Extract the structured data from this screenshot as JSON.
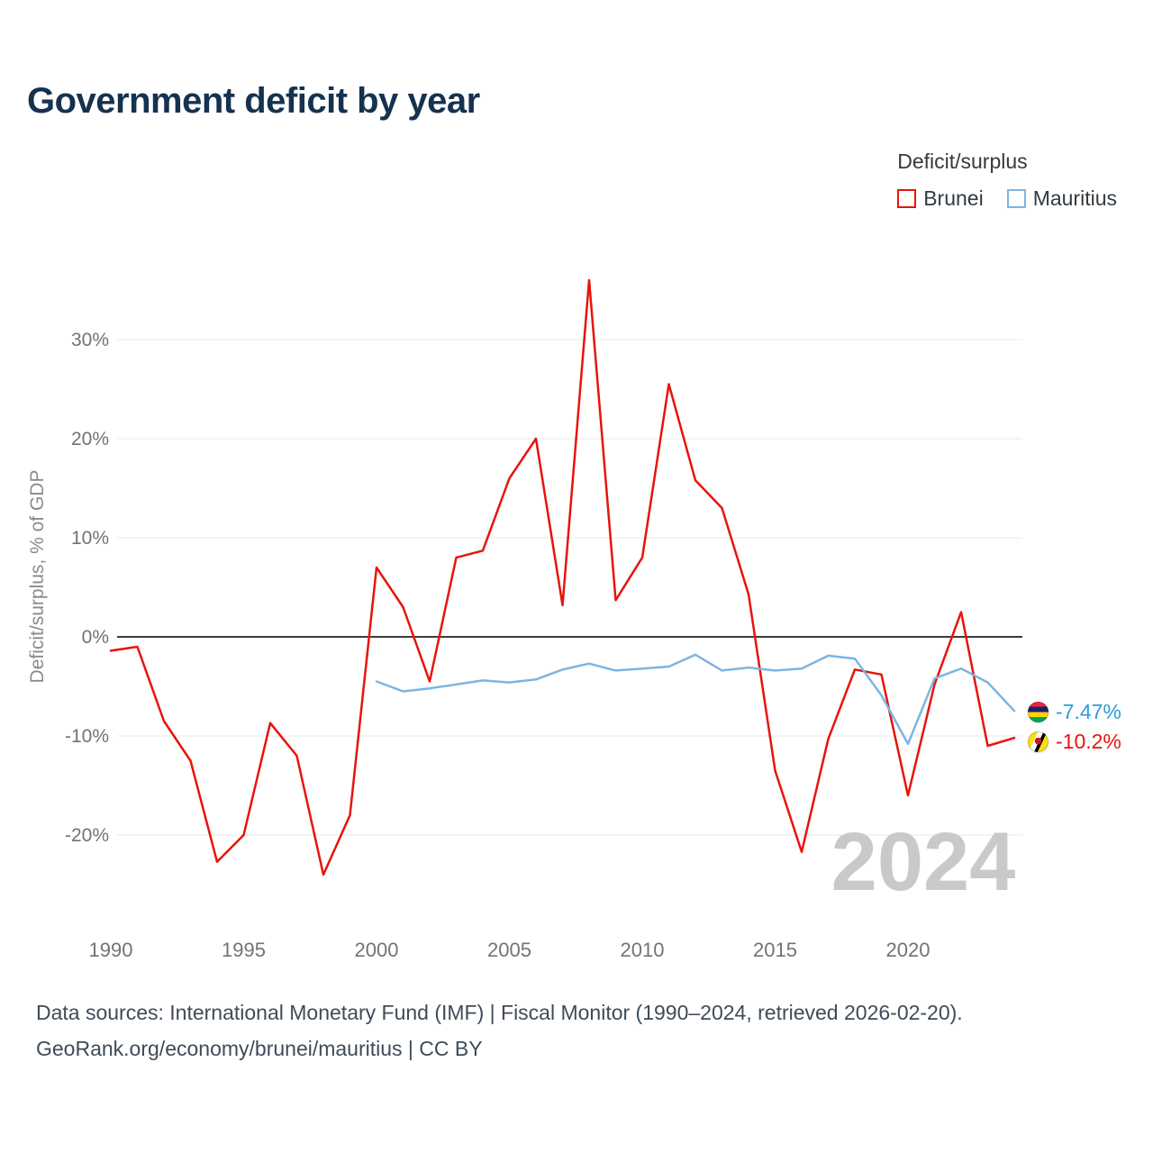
{
  "title": "Government deficit by year",
  "legend": {
    "title": "Deficit/surplus",
    "items": [
      {
        "label": "Brunei",
        "color": "#e8130b"
      },
      {
        "label": "Mauritius",
        "color": "#7cb5e3"
      }
    ]
  },
  "chart_data": {
    "type": "line",
    "title": "Government deficit by year",
    "xlabel": "",
    "ylabel": "Deficit/surplus, % of GDP",
    "xlim": [
      1990,
      2024
    ],
    "ylim": [
      -27,
      37
    ],
    "grid": true,
    "x_ticks": [
      1990,
      1995,
      2000,
      2005,
      2010,
      2015,
      2020
    ],
    "y_ticks": [
      30,
      20,
      10,
      0,
      -10,
      -20
    ],
    "y_tick_suffix": "%",
    "watermark": "2024",
    "series": [
      {
        "name": "Brunei",
        "color": "#e8130b",
        "x": [
          1990,
          1991,
          1992,
          1993,
          1994,
          1995,
          1996,
          1997,
          1998,
          1999,
          2000,
          2001,
          2002,
          2003,
          2004,
          2005,
          2006,
          2007,
          2008,
          2009,
          2010,
          2011,
          2012,
          2013,
          2014,
          2015,
          2016,
          2017,
          2018,
          2019,
          2020,
          2021,
          2022,
          2023,
          2024
        ],
        "values": [
          -1.4,
          -1.0,
          -8.5,
          -12.5,
          -22.7,
          -20.0,
          -8.7,
          -12.0,
          -24.0,
          -18.0,
          7.0,
          3.0,
          -4.5,
          8.0,
          8.7,
          16.0,
          20.0,
          3.2,
          36.0,
          3.7,
          8.0,
          25.5,
          15.8,
          13.0,
          4.3,
          -13.5,
          -21.7,
          -10.3,
          -3.3,
          -3.8,
          -16.0,
          -4.8,
          2.5,
          -11.0,
          -10.2
        ]
      },
      {
        "name": "Mauritius",
        "color": "#7cb5e3",
        "x": [
          2000,
          2001,
          2002,
          2003,
          2004,
          2005,
          2006,
          2007,
          2008,
          2009,
          2010,
          2011,
          2012,
          2013,
          2014,
          2015,
          2016,
          2017,
          2018,
          2019,
          2020,
          2021,
          2022,
          2023,
          2024
        ],
        "values": [
          -4.5,
          -5.5,
          -5.2,
          -4.8,
          -4.4,
          -4.6,
          -4.3,
          -3.3,
          -2.7,
          -3.4,
          -3.2,
          -3.0,
          -1.8,
          -3.4,
          -3.1,
          -3.4,
          -3.2,
          -1.9,
          -2.2,
          -5.9,
          -10.8,
          -4.2,
          -3.2,
          -4.6,
          -7.47
        ]
      }
    ],
    "end_labels": [
      {
        "series": "Mauritius",
        "text": "-7.47%",
        "color": "#2e9bd8",
        "flag": "mauritius-flag-icon"
      },
      {
        "series": "Brunei",
        "text": "-10.2%",
        "color": "#e8130b",
        "flag": "brunei-flag-icon"
      }
    ]
  },
  "footer": {
    "line1": "Data sources: International Monetary Fund (IMF) | Fiscal Monitor (1990–2024, retrieved 2026-02-20).",
    "line2": "GeoRank.org/economy/brunei/mauritius | CC BY"
  }
}
